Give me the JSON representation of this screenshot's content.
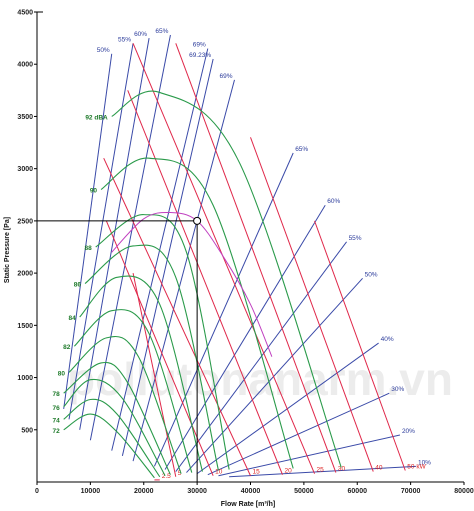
{
  "colors": {
    "efficiency": "#3a4aa8",
    "noise": "#2a9a4a",
    "power": "#e0284a",
    "peak_curve": "#c040c0",
    "duty_line": "#000000",
    "watermark": "#e8e8e8"
  },
  "watermark": "pollutonanarm.vn",
  "chart_data": {
    "type": "line",
    "title": "",
    "xlabel": "Flow Rate [m³/h]",
    "ylabel": "Static Pressure [Pa]",
    "xlim": [
      0,
      80000
    ],
    "ylim": [
      0,
      4500
    ],
    "x_ticks": [
      "0",
      "10000",
      "20000",
      "30000",
      "40000",
      "50000",
      "60000",
      "70000",
      "80000"
    ],
    "y_ticks": [
      "500",
      "1000",
      "1500",
      "2000",
      "2500",
      "3000",
      "3500",
      "4000",
      "4500"
    ],
    "grid": false,
    "duty_point": {
      "x": 30000,
      "y": 2500
    },
    "noise_curves": [
      {
        "label": "72",
        "x": [
          5000,
          10000,
          15000,
          22000
        ],
        "y": [
          500,
          650,
          480,
          40
        ]
      },
      {
        "label": "74",
        "x": [
          5000,
          10000,
          15000,
          23000
        ],
        "y": [
          600,
          790,
          650,
          50
        ]
      },
      {
        "label": "76",
        "x": [
          5000,
          10000,
          16000,
          24000
        ],
        "y": [
          720,
          980,
          800,
          60
        ]
      },
      {
        "label": "78",
        "x": [
          5000,
          12000,
          17000,
          25000
        ],
        "y": [
          850,
          1140,
          950,
          70
        ]
      },
      {
        "label": "80",
        "x": [
          6000,
          13000,
          19000,
          27000
        ],
        "y": [
          1050,
          1380,
          1200,
          80
        ]
      },
      {
        "label": "82",
        "x": [
          7000,
          14000,
          21000,
          29000
        ],
        "y": [
          1300,
          1640,
          1420,
          90
        ]
      },
      {
        "label": "84",
        "x": [
          8000,
          15000,
          23000,
          31000
        ],
        "y": [
          1580,
          1960,
          1700,
          100
        ]
      },
      {
        "label": "86",
        "x": [
          9000,
          18000,
          26000,
          34000
        ],
        "y": [
          1900,
          2260,
          1960,
          110
        ]
      },
      {
        "label": "88",
        "x": [
          11000,
          20000,
          28000,
          36000
        ],
        "y": [
          2250,
          2560,
          2200,
          120
        ]
      },
      {
        "label": "90",
        "x": [
          12000,
          21000,
          33000,
          48000
        ],
        "y": [
          2800,
          3100,
          2650,
          130
        ]
      },
      {
        "label": "92 dBA",
        "x": [
          14000,
          23000,
          38000,
          57000
        ],
        "y": [
          3500,
          3730,
          3050,
          140
        ]
      }
    ],
    "efficiency_lines": [
      {
        "label": "50%",
        "x": [
          14000,
          5000
        ],
        "y": [
          4100,
          700
        ]
      },
      {
        "label": "55%",
        "x": [
          18000,
          6000
        ],
        "y": [
          4200,
          600
        ]
      },
      {
        "label": "60%",
        "x": [
          21000,
          8000
        ],
        "y": [
          4250,
          500
        ]
      },
      {
        "label": "65%",
        "x": [
          25000,
          10000
        ],
        "y": [
          4280,
          400
        ]
      },
      {
        "label": "69%",
        "x": [
          32000,
          14000
        ],
        "y": [
          4150,
          300
        ]
      },
      {
        "label": "69.23%",
        "x": [
          33000,
          16000
        ],
        "y": [
          4050,
          250
        ]
      },
      {
        "label": "69%",
        "x": [
          37000,
          18000
        ],
        "y": [
          3850,
          200
        ]
      },
      {
        "label": "65%",
        "x": [
          48000,
          22000
        ],
        "y": [
          3150,
          150
        ]
      },
      {
        "label": "60%",
        "x": [
          54000,
          24000
        ],
        "y": [
          2650,
          120
        ]
      },
      {
        "label": "55%",
        "x": [
          58000,
          26000
        ],
        "y": [
          2300,
          100
        ]
      },
      {
        "label": "50%",
        "x": [
          61000,
          28000
        ],
        "y": [
          1950,
          90
        ]
      },
      {
        "label": "40%",
        "x": [
          64000,
          30000
        ],
        "y": [
          1330,
          80
        ]
      },
      {
        "label": "30%",
        "x": [
          66000,
          32000
        ],
        "y": [
          850,
          70
        ]
      },
      {
        "label": "20%",
        "x": [
          68000,
          34000
        ],
        "y": [
          450,
          60
        ]
      },
      {
        "label": "10%",
        "x": [
          71000,
          36000
        ],
        "y": [
          150,
          50
        ]
      }
    ],
    "power_lines": [
      {
        "label": "2.5",
        "x": [
          22000,
          23000
        ],
        "y": [
          20,
          20
        ]
      },
      {
        "label": "5",
        "x": [
          18000,
          26000
        ],
        "y": [
          2000,
          50
        ]
      },
      {
        "label": "10",
        "x": [
          13000,
          33000
        ],
        "y": [
          2500,
          60
        ]
      },
      {
        "label": "15",
        "x": [
          12500,
          40000
        ],
        "y": [
          3100,
          60
        ]
      },
      {
        "label": "20",
        "x": [
          17000,
          46000
        ],
        "y": [
          3750,
          70
        ]
      },
      {
        "label": "25",
        "x": [
          18000,
          52000
        ],
        "y": [
          4200,
          80
        ]
      },
      {
        "label": "30",
        "x": [
          26000,
          56000
        ],
        "y": [
          4200,
          90
        ]
      },
      {
        "label": "40",
        "x": [
          40000,
          63000
        ],
        "y": [
          3300,
          100
        ]
      },
      {
        "label": "50 kW",
        "x": [
          52000,
          69000
        ],
        "y": [
          2500,
          110
        ]
      }
    ],
    "peak_curve": {
      "x": [
        14000,
        20000,
        25000,
        30000,
        35000,
        40000,
        44000
      ],
      "y": [
        2200,
        2520,
        2580,
        2500,
        2150,
        1700,
        1200
      ]
    }
  }
}
